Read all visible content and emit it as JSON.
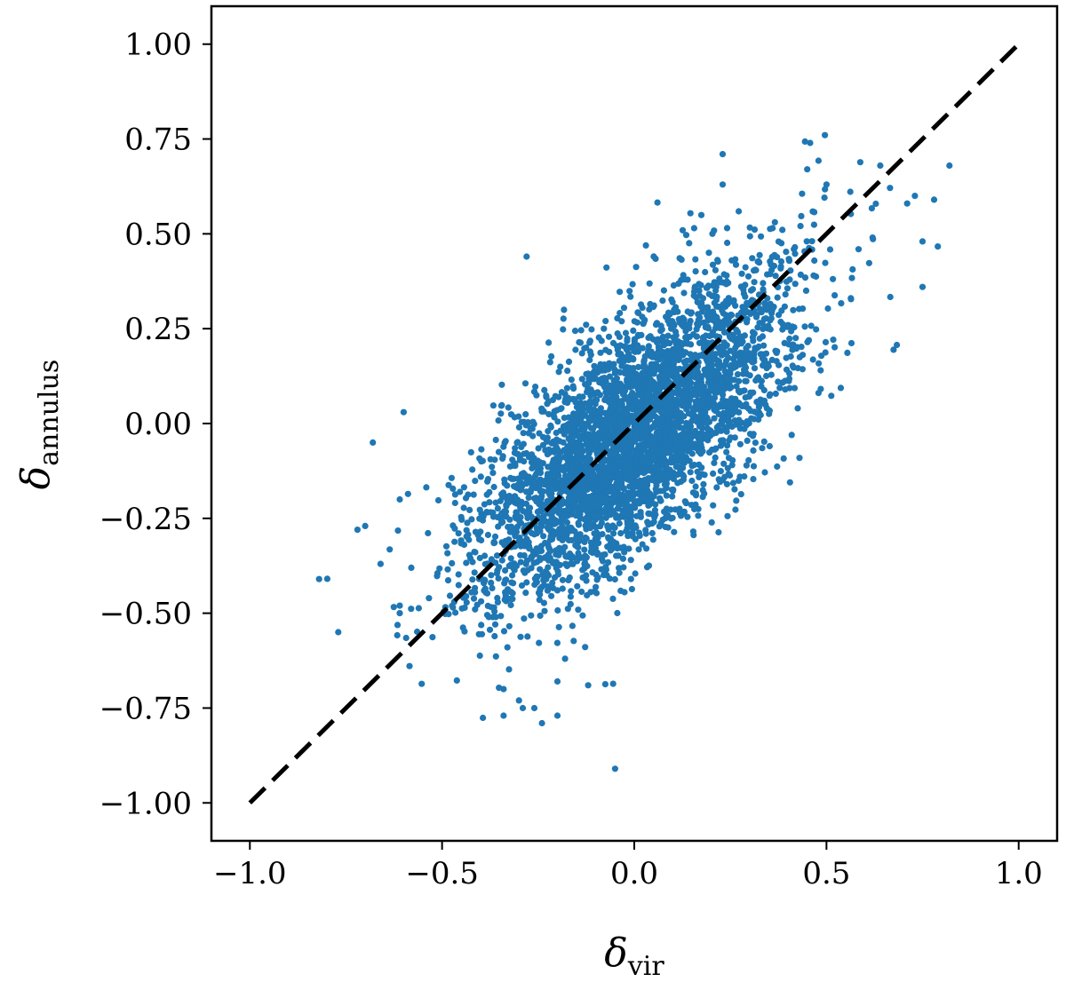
{
  "chart_data": {
    "type": "scatter",
    "title": "",
    "xlabel": {
      "symbol": "δ",
      "subscript": "vir"
    },
    "ylabel": {
      "symbol": "δ",
      "subscript": "annulus"
    },
    "xlim": [
      -1.1,
      1.1
    ],
    "ylim": [
      -1.1,
      1.1
    ],
    "grid": false,
    "x_ticks": [
      -1.0,
      -0.5,
      0.0,
      0.5,
      1.0
    ],
    "x_tick_labels": [
      "−1.0",
      "−0.5",
      "0.0",
      "0.5",
      "1.0"
    ],
    "y_ticks": [
      1.0,
      0.75,
      0.5,
      0.25,
      0.0,
      -0.25,
      -0.5,
      -0.75,
      -1.0
    ],
    "y_tick_labels": [
      "1.00",
      "0.75",
      "0.50",
      "0.25",
      "0.00",
      "−0.25",
      "−0.50",
      "−0.75",
      "−1.00"
    ],
    "point_color": "#1f77b4",
    "reference_line": {
      "style": "dashed",
      "color": "#000000",
      "from": [
        -1.0,
        -1.0
      ],
      "to": [
        1.0,
        1.0
      ]
    },
    "series": [
      {
        "n_points": 4000,
        "distribution": {
          "x_mean": 0.0,
          "x_std": 0.2,
          "y_slope": 0.75,
          "y_intercept": -0.03,
          "y_scatter_std": 0.15
        },
        "outliers": [
          [
            0.82,
            0.68
          ],
          [
            0.78,
            0.59
          ],
          [
            0.75,
            0.48
          ],
          [
            0.75,
            0.36
          ],
          [
            0.73,
            0.6
          ],
          [
            0.71,
            0.58
          ],
          [
            0.64,
            0.68
          ],
          [
            0.62,
            0.49
          ],
          [
            0.23,
            0.71
          ],
          [
            0.23,
            0.63
          ],
          [
            0.45,
            0.67
          ],
          [
            0.5,
            0.63
          ],
          [
            -0.28,
            0.44
          ],
          [
            -0.82,
            -0.41
          ],
          [
            -0.77,
            -0.55
          ],
          [
            -0.72,
            -0.28
          ],
          [
            -0.7,
            -0.27
          ],
          [
            -0.68,
            -0.05
          ],
          [
            -0.66,
            -0.37
          ],
          [
            -0.61,
            -0.2
          ],
          [
            -0.6,
            0.03
          ],
          [
            -0.58,
            -0.38
          ],
          [
            -0.61,
            -0.48
          ],
          [
            -0.61,
            -0.5
          ],
          [
            -0.34,
            -0.7
          ],
          [
            -0.34,
            -0.77
          ],
          [
            -0.33,
            -0.59
          ],
          [
            -0.3,
            -0.73
          ],
          [
            -0.29,
            -0.75
          ],
          [
            -0.26,
            -0.75
          ],
          [
            -0.24,
            -0.79
          ],
          [
            -0.2,
            -0.77
          ],
          [
            -0.18,
            -0.62
          ],
          [
            -0.05,
            -0.91
          ],
          [
            -0.2,
            -0.68
          ],
          [
            -0.12,
            -0.69
          ]
        ]
      }
    ]
  }
}
